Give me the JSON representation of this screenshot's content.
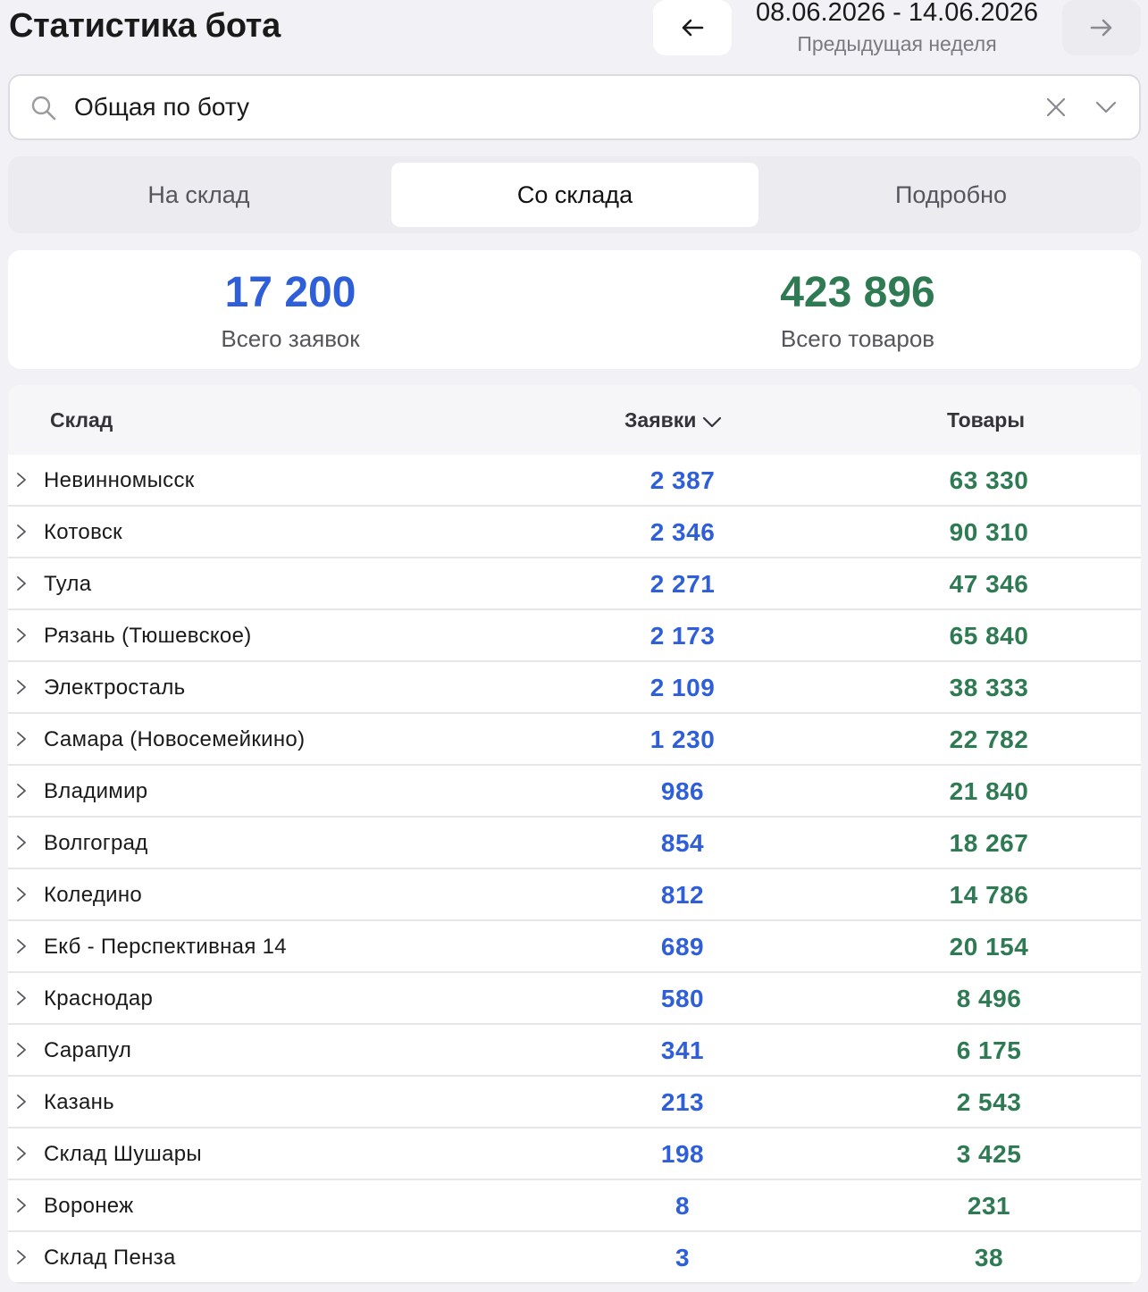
{
  "header": {
    "title": "Статистика бота",
    "date_range": "08.06.2026 - 14.06.2026",
    "period_label": "Предыдущая неделя"
  },
  "search": {
    "value": "Общая по боту"
  },
  "tabs": [
    {
      "label": "На склад",
      "active": false
    },
    {
      "label": "Со склада",
      "active": true
    },
    {
      "label": "Подробно",
      "active": false
    }
  ],
  "summary": {
    "total_requests": "17 200",
    "total_requests_label": "Всего заявок",
    "total_goods": "423 896",
    "total_goods_label": "Всего товаров"
  },
  "table": {
    "headers": {
      "warehouse": "Склад",
      "requests": "Заявки",
      "goods": "Товары"
    },
    "rows": [
      {
        "warehouse": "Невинномысск",
        "requests": "2 387",
        "goods": "63 330"
      },
      {
        "warehouse": "Котовск",
        "requests": "2 346",
        "goods": "90 310"
      },
      {
        "warehouse": "Тула",
        "requests": "2 271",
        "goods": "47 346"
      },
      {
        "warehouse": "Рязань (Тюшевское)",
        "requests": "2 173",
        "goods": "65 840"
      },
      {
        "warehouse": "Электросталь",
        "requests": "2 109",
        "goods": "38 333"
      },
      {
        "warehouse": "Самара (Новосемейкино)",
        "requests": "1 230",
        "goods": "22 782"
      },
      {
        "warehouse": "Владимир",
        "requests": "986",
        "goods": "21 840"
      },
      {
        "warehouse": "Волгоград",
        "requests": "854",
        "goods": "18 267"
      },
      {
        "warehouse": "Коледино",
        "requests": "812",
        "goods": "14 786"
      },
      {
        "warehouse": "Екб - Перспективная 14",
        "requests": "689",
        "goods": "20 154"
      },
      {
        "warehouse": "Краснодар",
        "requests": "580",
        "goods": "8 496"
      },
      {
        "warehouse": "Сарапул",
        "requests": "341",
        "goods": "6 175"
      },
      {
        "warehouse": "Казань",
        "requests": "213",
        "goods": "2 543"
      },
      {
        "warehouse": "Склад Шушары",
        "requests": "198",
        "goods": "3 425"
      },
      {
        "warehouse": "Воронеж",
        "requests": "8",
        "goods": "231"
      },
      {
        "warehouse": "Склад Пенза",
        "requests": "3",
        "goods": "38"
      }
    ]
  },
  "colors": {
    "requests": "#2f5fd8",
    "goods": "#2e7a53"
  }
}
